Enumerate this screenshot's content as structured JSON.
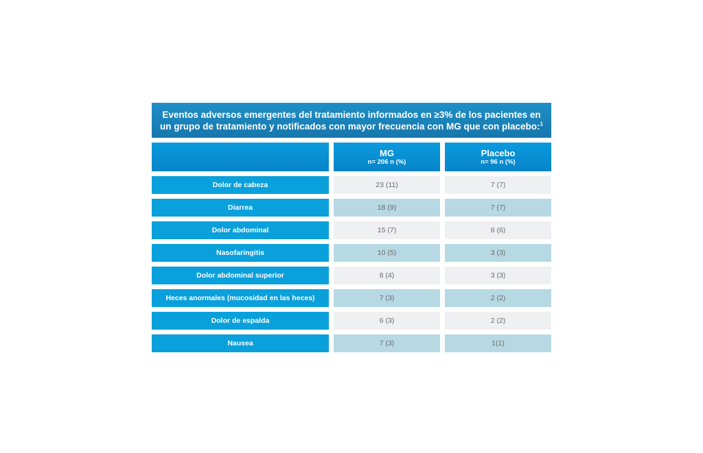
{
  "title": {
    "line1": "Eventos adversos emergentes del tratamiento informados en ≥3% de los pacientes en",
    "line2": "un grupo de tratamiento y notificados con mayor frecuencia con MG que con placebo:",
    "superscript": "1"
  },
  "columns": [
    {
      "name": "",
      "sub": ""
    },
    {
      "name": "MG",
      "sub": "n= 206 n (%)"
    },
    {
      "name": "Placebo",
      "sub": "n= 96 n (%)"
    }
  ],
  "rows": [
    {
      "label": "Dolor de cabeza",
      "mg": "23 (11)",
      "placebo": "7 (7)"
    },
    {
      "label": "Diarrea",
      "mg": "18 (9)",
      "placebo": "7 (7)"
    },
    {
      "label": "Dolor abdominal",
      "mg": "15 (7)",
      "placebo": "6 (6)"
    },
    {
      "label": "Nasofaringitis",
      "mg": "10 (5)",
      "placebo": "3 (3)"
    },
    {
      "label": "Dolor abdominal superior",
      "mg": "8 (4)",
      "placebo": "3 (3)"
    },
    {
      "label": "Heces anormales (mucosidad en las heces)",
      "mg": "7 (3)",
      "placebo": "2 (2)"
    },
    {
      "label": "Dolor de espalda",
      "mg": "6 (3)",
      "placebo": "2 (2)"
    },
    {
      "label": "Nausea",
      "mg": "7 (3)",
      "placebo": "1(1)"
    }
  ]
}
